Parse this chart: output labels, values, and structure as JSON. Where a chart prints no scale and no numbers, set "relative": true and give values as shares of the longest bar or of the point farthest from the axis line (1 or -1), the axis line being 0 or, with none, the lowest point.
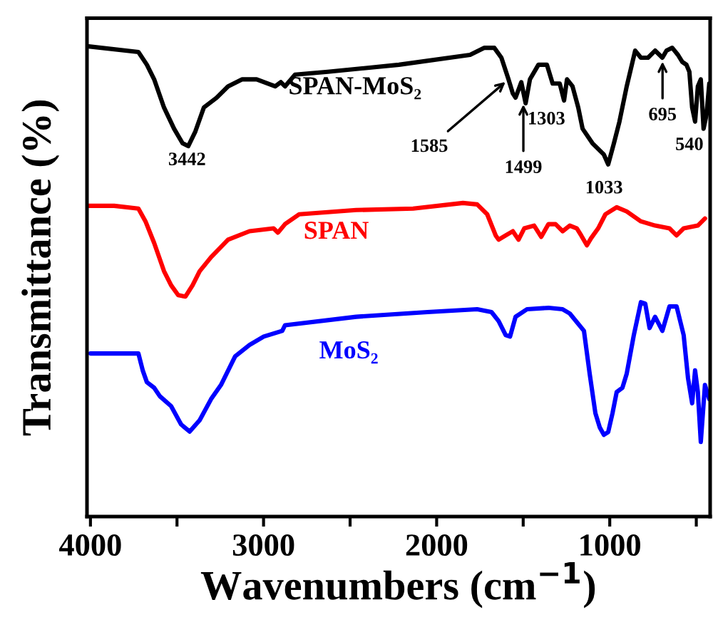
{
  "chart_data": {
    "type": "line",
    "relative": true,
    "xlabel": "Wavenumbers (cm$^{−1}$)",
    "ylabel": "Transmittance (%)",
    "xlim": [
      4020,
      420
    ],
    "xticks": [
      4000,
      {
        "value": 3500,
        "label": null
      },
      3000,
      {
        "value": 2500,
        "label": null
      },
      2000,
      {
        "value": 1500,
        "label": null
      },
      1000,
      {
        "value": 500,
        "label": null
      }
    ],
    "grid": false,
    "legend": false,
    "marker": "none",
    "line_style": "solid",
    "series": [
      {
        "name": "SPAN-MoS₂",
        "color": "#000000",
        "x": [
          4010,
          3723,
          3674,
          3632,
          3575,
          3517,
          3468,
          3435,
          3394,
          3345,
          3271,
          3205,
          3123,
          3040,
          2933,
          2900,
          2876,
          2818,
          2629,
          2218,
          1807,
          1724,
          1667,
          1626,
          1585,
          1560,
          1544,
          1511,
          1486,
          1461,
          1412,
          1363,
          1330,
          1289,
          1264,
          1247,
          1215,
          1182,
          1157,
          1100,
          1034,
          1009,
          976,
          944,
          902,
          853,
          820,
          779,
          738,
          696,
          672,
          639,
          606,
          581,
          557,
          540,
          524,
          507,
          491,
          474,
          458,
          441,
          425
        ],
        "values": [
          1.0,
          0.988,
          0.961,
          0.93,
          0.87,
          0.825,
          0.794,
          0.788,
          0.819,
          0.87,
          0.891,
          0.915,
          0.93,
          0.93,
          0.915,
          0.924,
          0.915,
          0.94,
          0.946,
          0.961,
          0.982,
          0.997,
          0.997,
          0.976,
          0.93,
          0.9,
          0.891,
          0.924,
          0.879,
          0.93,
          0.961,
          0.961,
          0.921,
          0.921,
          0.885,
          0.93,
          0.915,
          0.87,
          0.825,
          0.794,
          0.77,
          0.749,
          0.794,
          0.84,
          0.915,
          0.991,
          0.976,
          0.976,
          0.991,
          0.976,
          0.991,
          0.997,
          0.982,
          0.967,
          0.961,
          0.946,
          0.87,
          0.84,
          0.915,
          0.93,
          0.825,
          0.855,
          0.921
        ]
      },
      {
        "name": "SPAN",
        "color": "#ff0000",
        "x": [
          4010,
          3863,
          3723,
          3682,
          3632,
          3575,
          3534,
          3493,
          3451,
          3410,
          3369,
          3303,
          3205,
          3081,
          2942,
          2917,
          2876,
          2794,
          2465,
          2136,
          1848,
          1766,
          1708,
          1659,
          1642,
          1601,
          1560,
          1527,
          1494,
          1437,
          1396,
          1354,
          1313,
          1272,
          1231,
          1190,
          1165,
          1132,
          1108,
          1067,
          1025,
          960,
          902,
          820,
          738,
          655,
          614,
          573,
          491,
          450
        ],
        "values": [
          0.661,
          0.661,
          0.655,
          0.628,
          0.582,
          0.522,
          0.492,
          0.471,
          0.468,
          0.492,
          0.522,
          0.552,
          0.589,
          0.607,
          0.613,
          0.604,
          0.622,
          0.643,
          0.652,
          0.655,
          0.667,
          0.664,
          0.643,
          0.598,
          0.589,
          0.598,
          0.607,
          0.589,
          0.613,
          0.619,
          0.595,
          0.622,
          0.622,
          0.607,
          0.619,
          0.613,
          0.598,
          0.577,
          0.592,
          0.613,
          0.643,
          0.658,
          0.649,
          0.628,
          0.619,
          0.613,
          0.598,
          0.613,
          0.619,
          0.634
        ]
      },
      {
        "name": "MoS₂",
        "color": "#0000ff",
        "x": [
          4000,
          3863,
          3723,
          3698,
          3674,
          3632,
          3599,
          3534,
          3476,
          3427,
          3369,
          3303,
          3246,
          3164,
          3081,
          2999,
          2892,
          2876,
          2465,
          2053,
          1766,
          1683,
          1642,
          1601,
          1576,
          1544,
          1478,
          1354,
          1272,
          1231,
          1149,
          1116,
          1083,
          1058,
          1034,
          1009,
          984,
          960,
          927,
          902,
          861,
          820,
          795,
          770,
          738,
          696,
          655,
          614,
          573,
          548,
          524,
          507,
          491,
          474,
          450,
          425
        ],
        "values": [
          0.347,
          0.347,
          0.347,
          0.311,
          0.286,
          0.274,
          0.256,
          0.235,
          0.196,
          0.181,
          0.205,
          0.25,
          0.28,
          0.341,
          0.365,
          0.383,
          0.395,
          0.407,
          0.425,
          0.435,
          0.441,
          0.435,
          0.416,
          0.386,
          0.383,
          0.425,
          0.441,
          0.444,
          0.441,
          0.432,
          0.395,
          0.304,
          0.22,
          0.19,
          0.174,
          0.18,
          0.22,
          0.265,
          0.274,
          0.304,
          0.386,
          0.456,
          0.453,
          0.401,
          0.425,
          0.395,
          0.447,
          0.447,
          0.386,
          0.295,
          0.241,
          0.311,
          0.265,
          0.159,
          0.28,
          0.25
        ]
      }
    ],
    "annotations": [
      {
        "text": "3442",
        "x": 3442,
        "y": 0.788
      },
      {
        "text": "1585",
        "x": 1585,
        "y": 0.93
      },
      {
        "text": "1499",
        "x": 1499,
        "y": 0.885
      },
      {
        "text": "1303",
        "x": 1303,
        "y": 0.921
      },
      {
        "text": "1033",
        "x": 1033,
        "y": 0.749
      },
      {
        "text": "695",
        "x": 695,
        "y": 0.976
      },
      {
        "text": "540",
        "x": 540,
        "y": 0.9
      }
    ]
  }
}
